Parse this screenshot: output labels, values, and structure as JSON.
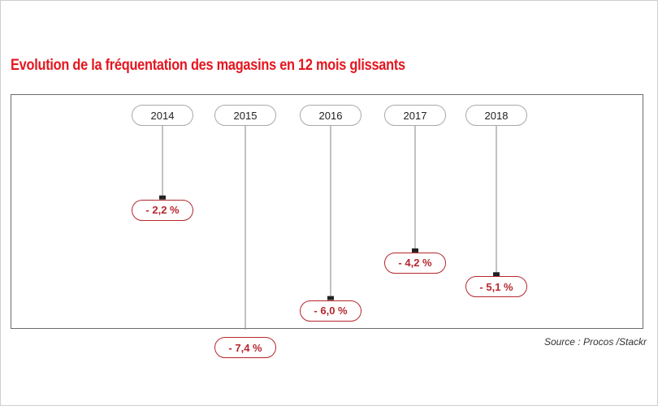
{
  "chart_data": {
    "type": "bar",
    "title": "Evolution de la fréquentation des magasins en 12 mois glissants",
    "categories": [
      "2014",
      "2015",
      "2016",
      "2017",
      "2018"
    ],
    "values": [
      -2.2,
      -7.4,
      -6.0,
      -4.2,
      -5.1
    ],
    "value_labels": [
      "- 2,2 %",
      "- 7,4 %",
      "- 6,0 %",
      "- 4,2 %",
      "- 5,1 %"
    ],
    "ylim": [
      -8,
      0
    ],
    "grid": false,
    "colors": {
      "title": "#e4161f",
      "value": "#b5272d",
      "stem": "#9a9a9a"
    }
  },
  "source": "Source : Procos /Stackr"
}
